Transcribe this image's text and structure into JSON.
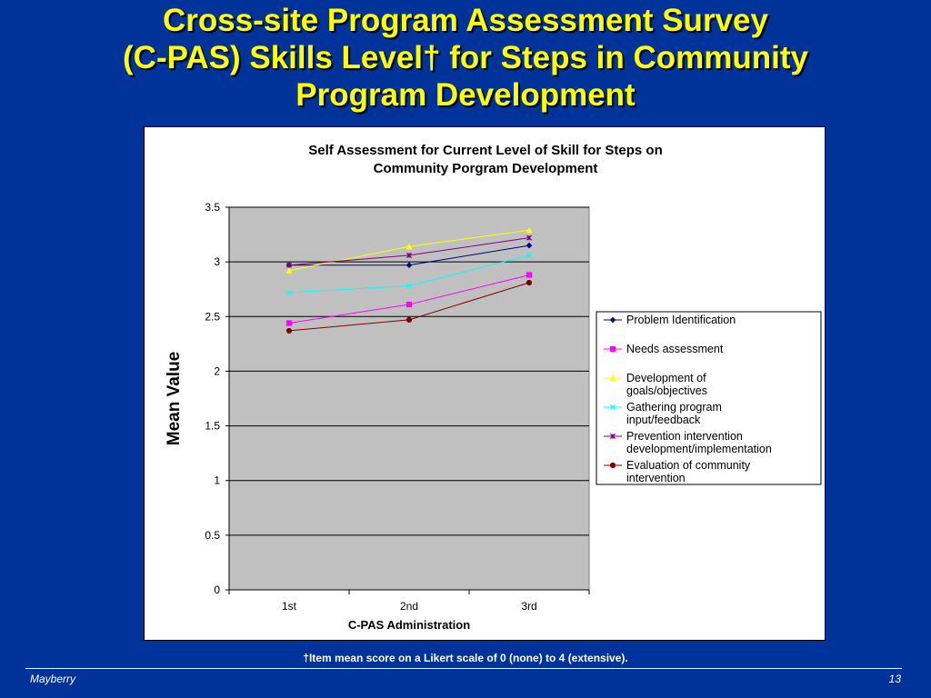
{
  "slide": {
    "title_lines": [
      "Cross-site Program Assessment Survey",
      "(C-PAS) Skills Level† for Steps in Community",
      "Program Development"
    ],
    "footnote": "†Item mean score on a Likert scale of 0 (none) to 4 (extensive).",
    "author": "Mayberry",
    "page_number": "13"
  },
  "chart_data": {
    "type": "line",
    "title_lines": [
      "Self Assessment for Current Level of Skill for Steps on",
      "Community Porgram Development"
    ],
    "xlabel": "C-PAS Administration",
    "ylabel": "Mean Value",
    "categories": [
      "1st",
      "2nd",
      "3rd"
    ],
    "ylim": [
      0,
      3.5
    ],
    "yticks": [
      "0",
      "0.5",
      "1",
      "1.5",
      "2",
      "2.5",
      "3",
      "3.5"
    ],
    "grid": true,
    "legend_position": "right",
    "series": [
      {
        "name": "Problem Identification",
        "name_lines": [
          "Problem Identification"
        ],
        "values": [
          2.97,
          2.97,
          3.15
        ],
        "color": "#000080",
        "marker": "diamond"
      },
      {
        "name": "Needs assessment",
        "name_lines": [
          "Needs assessment"
        ],
        "values": [
          2.44,
          2.61,
          2.88
        ],
        "color": "#ff00ff",
        "marker": "square"
      },
      {
        "name": "Development of goals/objectives",
        "name_lines": [
          "Development of",
          "goals/objectives"
        ],
        "values": [
          2.92,
          3.14,
          3.29
        ],
        "color": "#ffff00",
        "marker": "triangle"
      },
      {
        "name": "Gathering program input/feedback",
        "name_lines": [
          "Gathering program",
          "input/feedback"
        ],
        "values": [
          2.72,
          2.78,
          3.06
        ],
        "color": "#00ffff",
        "marker": "x"
      },
      {
        "name": "Prevention intervention development/implementation",
        "name_lines": [
          "Prevention intervention",
          "development/implementation"
        ],
        "values": [
          2.97,
          3.06,
          3.22
        ],
        "color": "#800080",
        "marker": "star"
      },
      {
        "name": "Evaluation of community intervention",
        "name_lines": [
          "Evaluation of community",
          "intervention"
        ],
        "values": [
          2.37,
          2.47,
          2.81
        ],
        "color": "#800000",
        "marker": "circle"
      }
    ]
  }
}
